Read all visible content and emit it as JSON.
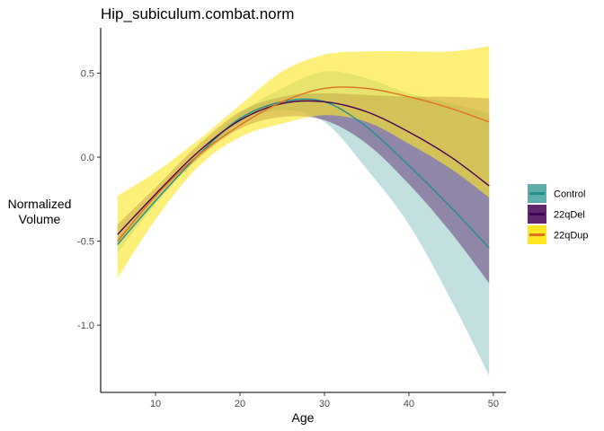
{
  "chart_data": {
    "type": "line",
    "title": "Hip_subiculum.combat.norm",
    "xlabel": "Age",
    "ylabel": "Normalized\nVolume",
    "xlim": [
      3.5,
      51.5
    ],
    "ylim": [
      -1.4,
      0.77
    ],
    "x_ticks": [
      10,
      20,
      30,
      40,
      50
    ],
    "y_ticks": [
      -1.0,
      -0.5,
      0.0,
      0.5
    ],
    "y_tick_labels": [
      "-1.0",
      "-0.5",
      "0.0",
      "0.5"
    ],
    "grid": false,
    "legend_position": "right",
    "series": [
      {
        "name": "Control",
        "color": "#21908C",
        "band_color": "#21908C",
        "band_opacity": 0.28,
        "x": [
          5.5,
          10,
          15,
          20,
          25,
          30,
          35,
          40,
          45,
          49.5
        ],
        "y": [
          -0.52,
          -0.26,
          0.01,
          0.23,
          0.33,
          0.33,
          0.18,
          -0.05,
          -0.3,
          -0.54
        ],
        "lower": [
          -0.57,
          -0.28,
          -0.01,
          0.2,
          0.28,
          0.21,
          -0.07,
          -0.4,
          -0.85,
          -1.3
        ],
        "upper": [
          -0.47,
          -0.24,
          0.03,
          0.26,
          0.41,
          0.51,
          0.47,
          0.38,
          0.32,
          0.26
        ]
      },
      {
        "name": "22qDel",
        "color": "#440154",
        "band_color": "#440154",
        "band_opacity": 0.4,
        "x": [
          5.5,
          10,
          15,
          20,
          25,
          30,
          35,
          40,
          45,
          49.5
        ],
        "y": [
          -0.46,
          -0.22,
          0.03,
          0.22,
          0.32,
          0.33,
          0.27,
          0.15,
          0.0,
          -0.17
        ],
        "lower": [
          -0.52,
          -0.26,
          -0.01,
          0.17,
          0.24,
          0.22,
          0.08,
          -0.16,
          -0.45,
          -0.75
        ],
        "upper": [
          -0.4,
          -0.18,
          0.07,
          0.27,
          0.36,
          0.38,
          0.37,
          0.36,
          0.36,
          0.35
        ]
      },
      {
        "name": "22qDup",
        "color": "#E07020",
        "band_color": "#FDE725",
        "band_opacity": 0.62,
        "x": [
          5.5,
          10,
          15,
          20,
          25,
          30,
          35,
          40,
          45,
          49.5
        ],
        "y": [
          -0.5,
          -0.23,
          0.01,
          0.19,
          0.33,
          0.41,
          0.41,
          0.36,
          0.29,
          0.21
        ],
        "lower": [
          -0.72,
          -0.37,
          -0.06,
          0.12,
          0.2,
          0.25,
          0.21,
          0.08,
          -0.07,
          -0.24
        ],
        "upper": [
          -0.23,
          -0.09,
          0.1,
          0.31,
          0.51,
          0.61,
          0.63,
          0.63,
          0.63,
          0.66
        ]
      }
    ]
  }
}
